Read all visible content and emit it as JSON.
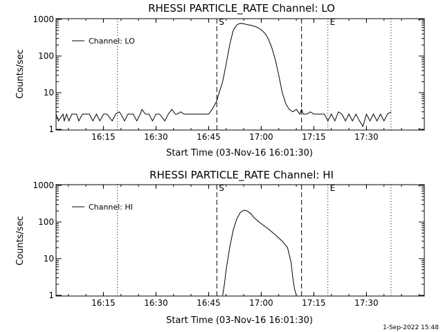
{
  "footer": {
    "timestamp": "1-Sep-2022 15:48"
  },
  "chart_data": [
    {
      "type": "line",
      "title": "RHESSI PARTICLE_RATE Channel: LO",
      "xlabel": "Start Time (03-Nov-16 16:01:30)",
      "ylabel": "Counts/sec",
      "yscale": "log",
      "ylim": [
        1,
        1000
      ],
      "xlim": [
        "16:01:30",
        "17:46:30"
      ],
      "x_ticks": [
        "16:15",
        "16:30",
        "16:45",
        "17:00",
        "17:15",
        "17:30"
      ],
      "y_ticks": [
        "1",
        "10",
        "100",
        "1000"
      ],
      "legend": {
        "position": "top-left",
        "entries": [
          "Channel: LO"
        ]
      },
      "grid": false,
      "markers": [
        {
          "label": "S",
          "time": "16:47:20",
          "style": "dashed"
        },
        {
          "label": "",
          "time": "17:11:30",
          "style": "dashed"
        },
        {
          "label": "E",
          "time": "17:19:00",
          "style": "dotted"
        },
        {
          "label": "",
          "time": "16:19:00",
          "style": "dotted"
        },
        {
          "label": "",
          "time": "17:37:00",
          "style": "dotted"
        }
      ],
      "series": [
        {
          "name": "Channel: LO",
          "x": [
            "16:01:30",
            "16:02:10",
            "16:03:30",
            "16:03:50",
            "16:04:30",
            "16:05:10",
            "16:06:00",
            "16:07:20",
            "16:08:00",
            "16:09:00",
            "16:10:00",
            "16:11:00",
            "16:12:00",
            "16:13:00",
            "16:14:00",
            "16:15:00",
            "16:16:00",
            "16:17:30",
            "16:18:30",
            "16:19:30",
            "16:20:00",
            "16:21:00",
            "16:22:00",
            "16:23:30",
            "16:24:30",
            "16:25:30",
            "16:26:00",
            "16:27:00",
            "16:28:00",
            "16:29:00",
            "16:30:00",
            "16:31:00",
            "16:32:30",
            "16:33:30",
            "16:34:30",
            "16:35:30",
            "16:36:00",
            "16:37:00",
            "16:38:00",
            "16:39:00",
            "16:40:00",
            "16:41:00",
            "16:42:00",
            "16:43:00",
            "16:44:00",
            "16:45:00",
            "16:46:00",
            "16:46:40",
            "16:47:20",
            "16:48:00",
            "16:49:00",
            "16:50:00",
            "16:51:00",
            "16:52:00",
            "16:53:00",
            "16:54:00",
            "16:55:00",
            "16:56:00",
            "16:57:00",
            "16:58:00",
            "16:59:00",
            "17:00:00",
            "17:01:00",
            "17:02:00",
            "17:03:00",
            "17:04:00",
            "17:05:00",
            "17:06:00",
            "17:07:00",
            "17:08:00",
            "17:09:00",
            "17:10:00",
            "17:11:00",
            "17:11:30",
            "17:12:00",
            "17:13:00",
            "17:14:00",
            "17:15:00",
            "17:16:00",
            "17:17:00",
            "17:18:00",
            "17:19:00",
            "17:20:00",
            "17:21:00",
            "17:22:00",
            "17:23:00",
            "17:24:00",
            "17:25:00",
            "17:26:00",
            "17:27:00",
            "17:28:00",
            "17:29:00",
            "17:30:00",
            "17:31:00",
            "17:32:00",
            "17:33:00",
            "17:34:00",
            "17:35:00",
            "17:36:00",
            "17:37:00"
          ],
          "y": [
            2.6,
            1.7,
            2.6,
            1.7,
            2.6,
            1.7,
            2.6,
            2.6,
            1.7,
            2.6,
            2.6,
            2.6,
            1.7,
            2.6,
            1.7,
            2.6,
            2.6,
            1.7,
            2.6,
            3.0,
            2.6,
            1.7,
            2.6,
            2.6,
            1.7,
            2.6,
            3.5,
            2.6,
            2.6,
            1.7,
            2.6,
            2.6,
            1.7,
            2.6,
            3.5,
            2.6,
            2.6,
            3.0,
            2.6,
            2.6,
            2.6,
            2.6,
            2.6,
            2.6,
            2.6,
            2.6,
            3.5,
            4.5,
            6,
            10,
            20,
            60,
            200,
            500,
            700,
            780,
            760,
            720,
            690,
            650,
            600,
            520,
            420,
            300,
            170,
            80,
            30,
            10,
            5,
            3.5,
            3,
            3.5,
            2.6,
            3.5,
            2.6,
            2.6,
            3.0,
            2.6,
            2.6,
            2.6,
            2.6,
            1.7,
            2.6,
            1.7,
            3.0,
            2.6,
            1.7,
            2.6,
            1.7,
            2.6,
            1.7,
            1.2,
            2.6,
            1.7,
            2.6,
            1.7,
            2.6,
            1.7,
            2.6,
            3.0
          ]
        }
      ]
    },
    {
      "type": "line",
      "title": "RHESSI PARTICLE_RATE Channel: HI",
      "xlabel": "Start Time (03-Nov-16 16:01:30)",
      "ylabel": "Counts/sec",
      "yscale": "log",
      "ylim": [
        1,
        1000
      ],
      "xlim": [
        "16:01:30",
        "17:46:30"
      ],
      "x_ticks": [
        "16:15",
        "16:30",
        "16:45",
        "17:00",
        "17:15",
        "17:30"
      ],
      "y_ticks": [
        "1",
        "10",
        "100",
        "1000"
      ],
      "legend": {
        "position": "top-left",
        "entries": [
          "Channel: HI"
        ]
      },
      "grid": false,
      "markers": [
        {
          "label": "S",
          "time": "16:47:20",
          "style": "dashed"
        },
        {
          "label": "",
          "time": "17:11:30",
          "style": "dashed"
        },
        {
          "label": "E",
          "time": "17:19:00",
          "style": "dotted"
        },
        {
          "label": "",
          "time": "16:19:00",
          "style": "dotted"
        },
        {
          "label": "",
          "time": "17:37:00",
          "style": "dotted"
        }
      ],
      "series": [
        {
          "name": "Channel: HI",
          "x": [
            "16:49:00",
            "16:49:30",
            "16:50:00",
            "16:51:00",
            "16:52:00",
            "16:53:00",
            "16:54:00",
            "16:55:00",
            "16:56:00",
            "16:57:00",
            "16:58:00",
            "17:00:00",
            "17:02:00",
            "17:04:00",
            "17:06:00",
            "17:07:30",
            "17:08:30",
            "17:09:00",
            "17:09:30",
            "17:10:00"
          ],
          "y": [
            1.0,
            2,
            5,
            20,
            60,
            120,
            180,
            210,
            200,
            170,
            130,
            90,
            65,
            45,
            30,
            20,
            8,
            3,
            1.5,
            1.0
          ]
        }
      ]
    }
  ]
}
